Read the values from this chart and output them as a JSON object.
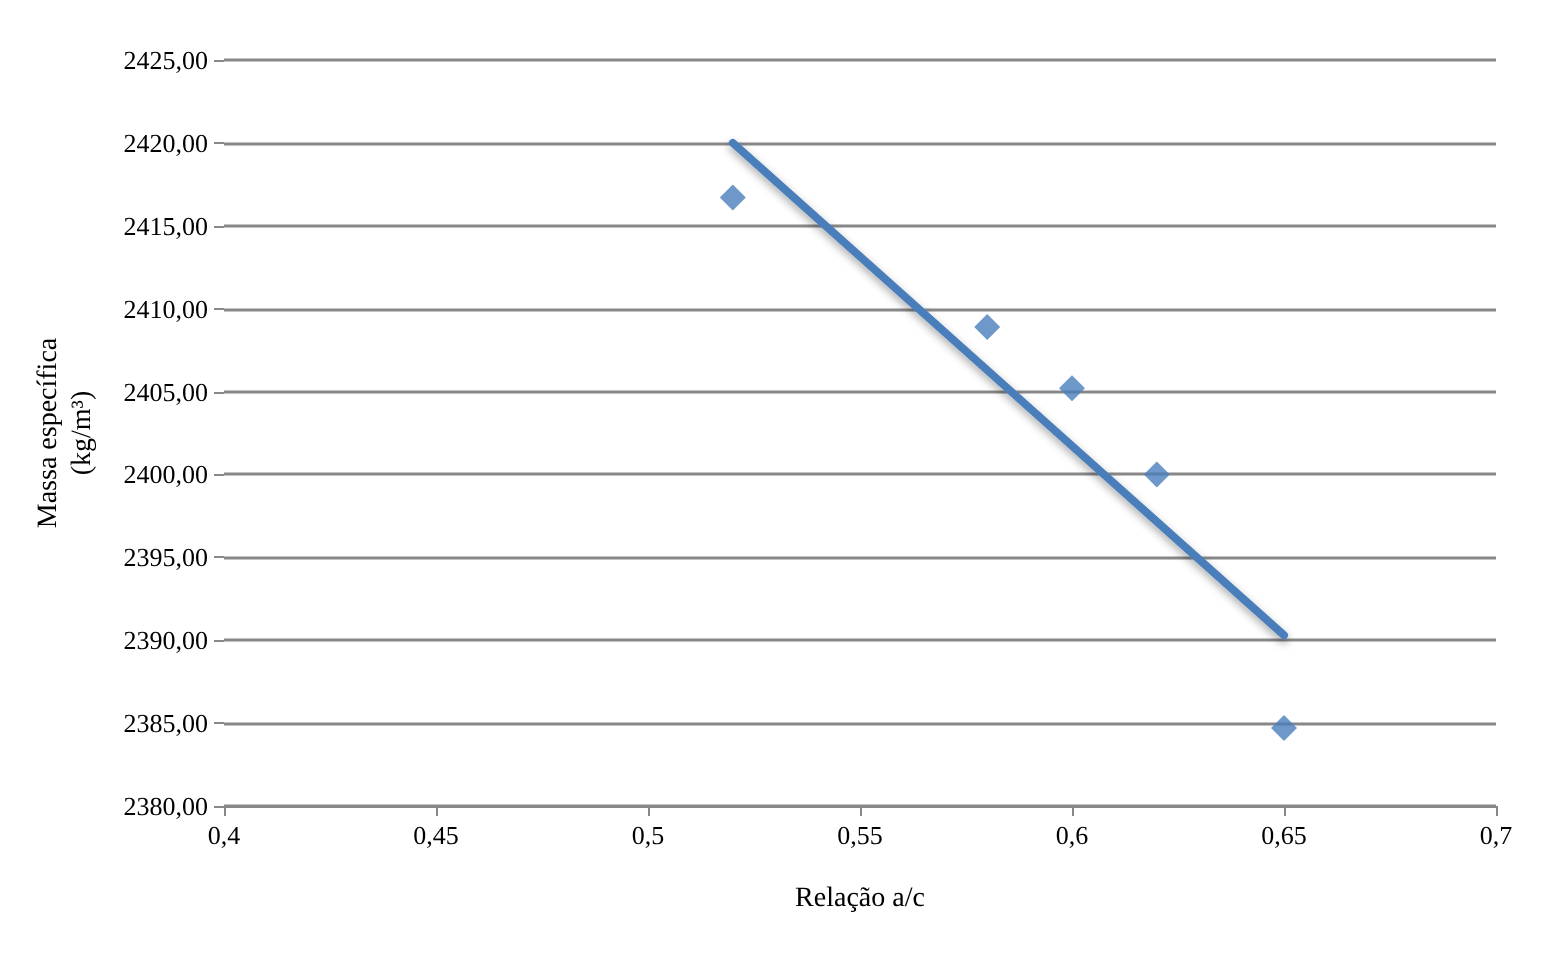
{
  "chart_data": {
    "type": "scatter",
    "xlabel": "Relação a/c",
    "ylabel": "Massa específica\n(kg/m³)",
    "xlim": [
      0.4,
      0.7
    ],
    "xticks": [
      {
        "value": 0.4,
        "label": "0,4"
      },
      {
        "value": 0.45,
        "label": "0,45"
      },
      {
        "value": 0.5,
        "label": "0,5"
      },
      {
        "value": 0.55,
        "label": "0,55"
      },
      {
        "value": 0.6,
        "label": "0,6"
      },
      {
        "value": 0.65,
        "label": "0,65"
      },
      {
        "value": 0.7,
        "label": "0,7"
      }
    ],
    "ylim": [
      2380,
      2425
    ],
    "yticks": [
      {
        "value": 2380,
        "label": "2380,00"
      },
      {
        "value": 2385,
        "label": "2385,00"
      },
      {
        "value": 2390,
        "label": "2390,00"
      },
      {
        "value": 2395,
        "label": "2395,00"
      },
      {
        "value": 2400,
        "label": "2400,00"
      },
      {
        "value": 2405,
        "label": "2405,00"
      },
      {
        "value": 2410,
        "label": "2410,00"
      },
      {
        "value": 2415,
        "label": "2415,00"
      },
      {
        "value": 2420,
        "label": "2420,00"
      },
      {
        "value": 2425,
        "label": "2425,00"
      }
    ],
    "grid": "y",
    "series": [
      {
        "marker": "diamond",
        "color": "#4a7ebb",
        "x": [
          0.52,
          0.58,
          0.6,
          0.62,
          0.65
        ],
        "values": [
          2416.7,
          2408.9,
          2405.2,
          2400,
          2384.7
        ]
      },
      {
        "type": "line",
        "marker": "none",
        "line_style": "solid",
        "color": "#4a7ebb",
        "x": [
          0.52,
          0.65
        ],
        "values": [
          2420,
          2390.3
        ]
      }
    ]
  }
}
